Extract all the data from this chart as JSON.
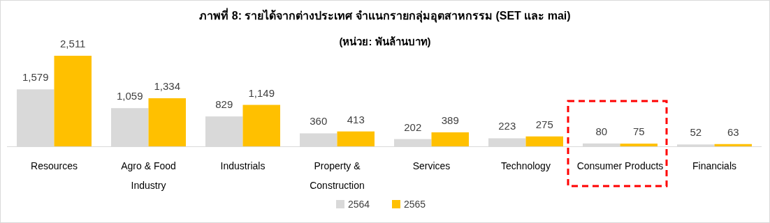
{
  "chart_data": {
    "type": "bar",
    "title": "ภาพที่ 8: รายได้จากต่างประเทศ จำแนกรายกลุ่มอุตสาหกรรม (SET และ mai)",
    "subtitle": "(หน่วย: พันล้านบาท)",
    "categories": [
      "Resources",
      "Agro & Food\nIndustry",
      "Industrials",
      "Property &\nConstruction",
      "Services",
      "Technology",
      "Consumer Products",
      "Financials"
    ],
    "series": [
      {
        "name": "2564",
        "color": "#d9d9d9",
        "values": [
          1579,
          1059,
          829,
          360,
          202,
          223,
          80,
          52
        ],
        "value_labels": [
          "1,579",
          "1,059",
          "829",
          "360",
          "202",
          "223",
          "80",
          "52"
        ]
      },
      {
        "name": "2565",
        "color": "#ffc000",
        "values": [
          2511,
          1334,
          1149,
          413,
          389,
          275,
          75,
          63
        ],
        "value_labels": [
          "2,511",
          "1,334",
          "1,149",
          "413",
          "389",
          "275",
          "75",
          "63"
        ]
      }
    ],
    "legend": "bottom"
  }
}
